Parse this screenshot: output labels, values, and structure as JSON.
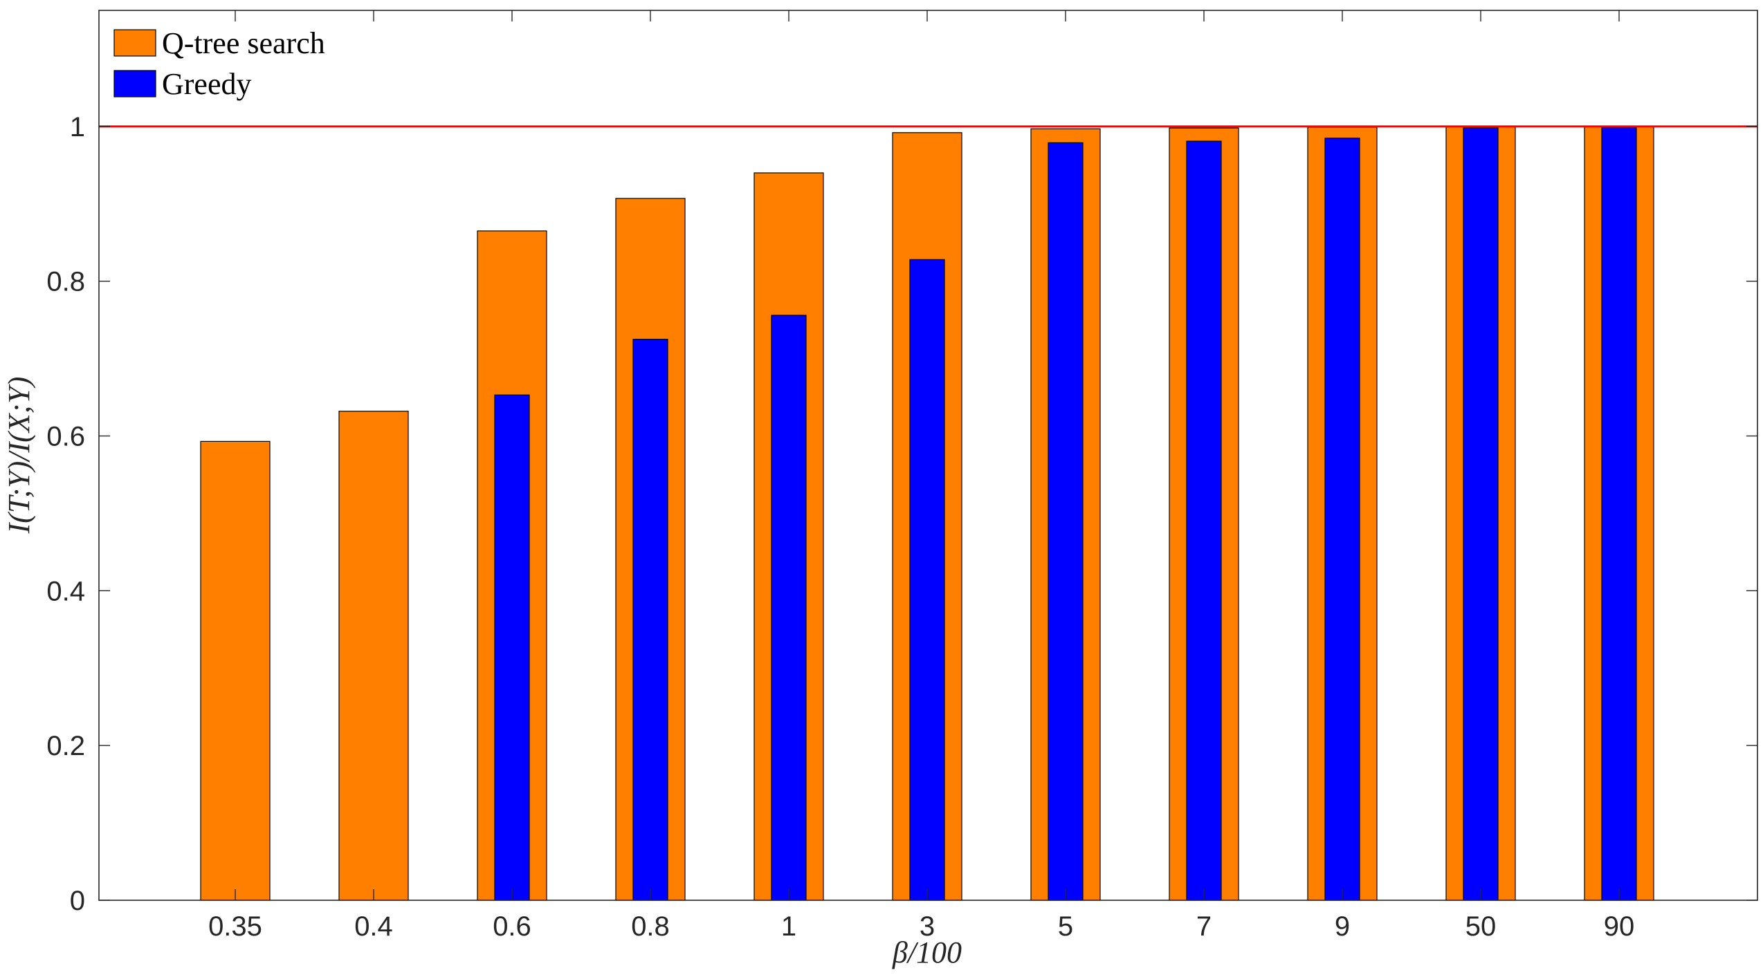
{
  "chart_data": {
    "type": "bar",
    "categories": [
      "0.35",
      "0.4",
      "0.6",
      "0.8",
      "1",
      "3",
      "5",
      "7",
      "9",
      "50",
      "90"
    ],
    "series": [
      {
        "name": "Q-tree search",
        "color": "#FF8000",
        "values": [
          0.593,
          0.632,
          0.865,
          0.907,
          0.94,
          0.992,
          0.997,
          0.998,
          0.999,
          1.0,
          1.0
        ]
      },
      {
        "name": "Greedy",
        "color": "#0000FF",
        "values": [
          null,
          null,
          0.653,
          0.725,
          0.756,
          0.828,
          0.979,
          0.981,
          0.985,
          0.998,
          0.999
        ]
      }
    ],
    "xlabel": "β/100",
    "ylabel": "I(T;Y)/I(X;Y)",
    "ylim": [
      0,
      1.15
    ],
    "yticks": [
      "0",
      "0.2",
      "0.4",
      "0.6",
      "0.8",
      "1"
    ],
    "reference_line": {
      "y": 1,
      "color": "#FF0000"
    },
    "legend_position": "top-left",
    "grid": false
  }
}
